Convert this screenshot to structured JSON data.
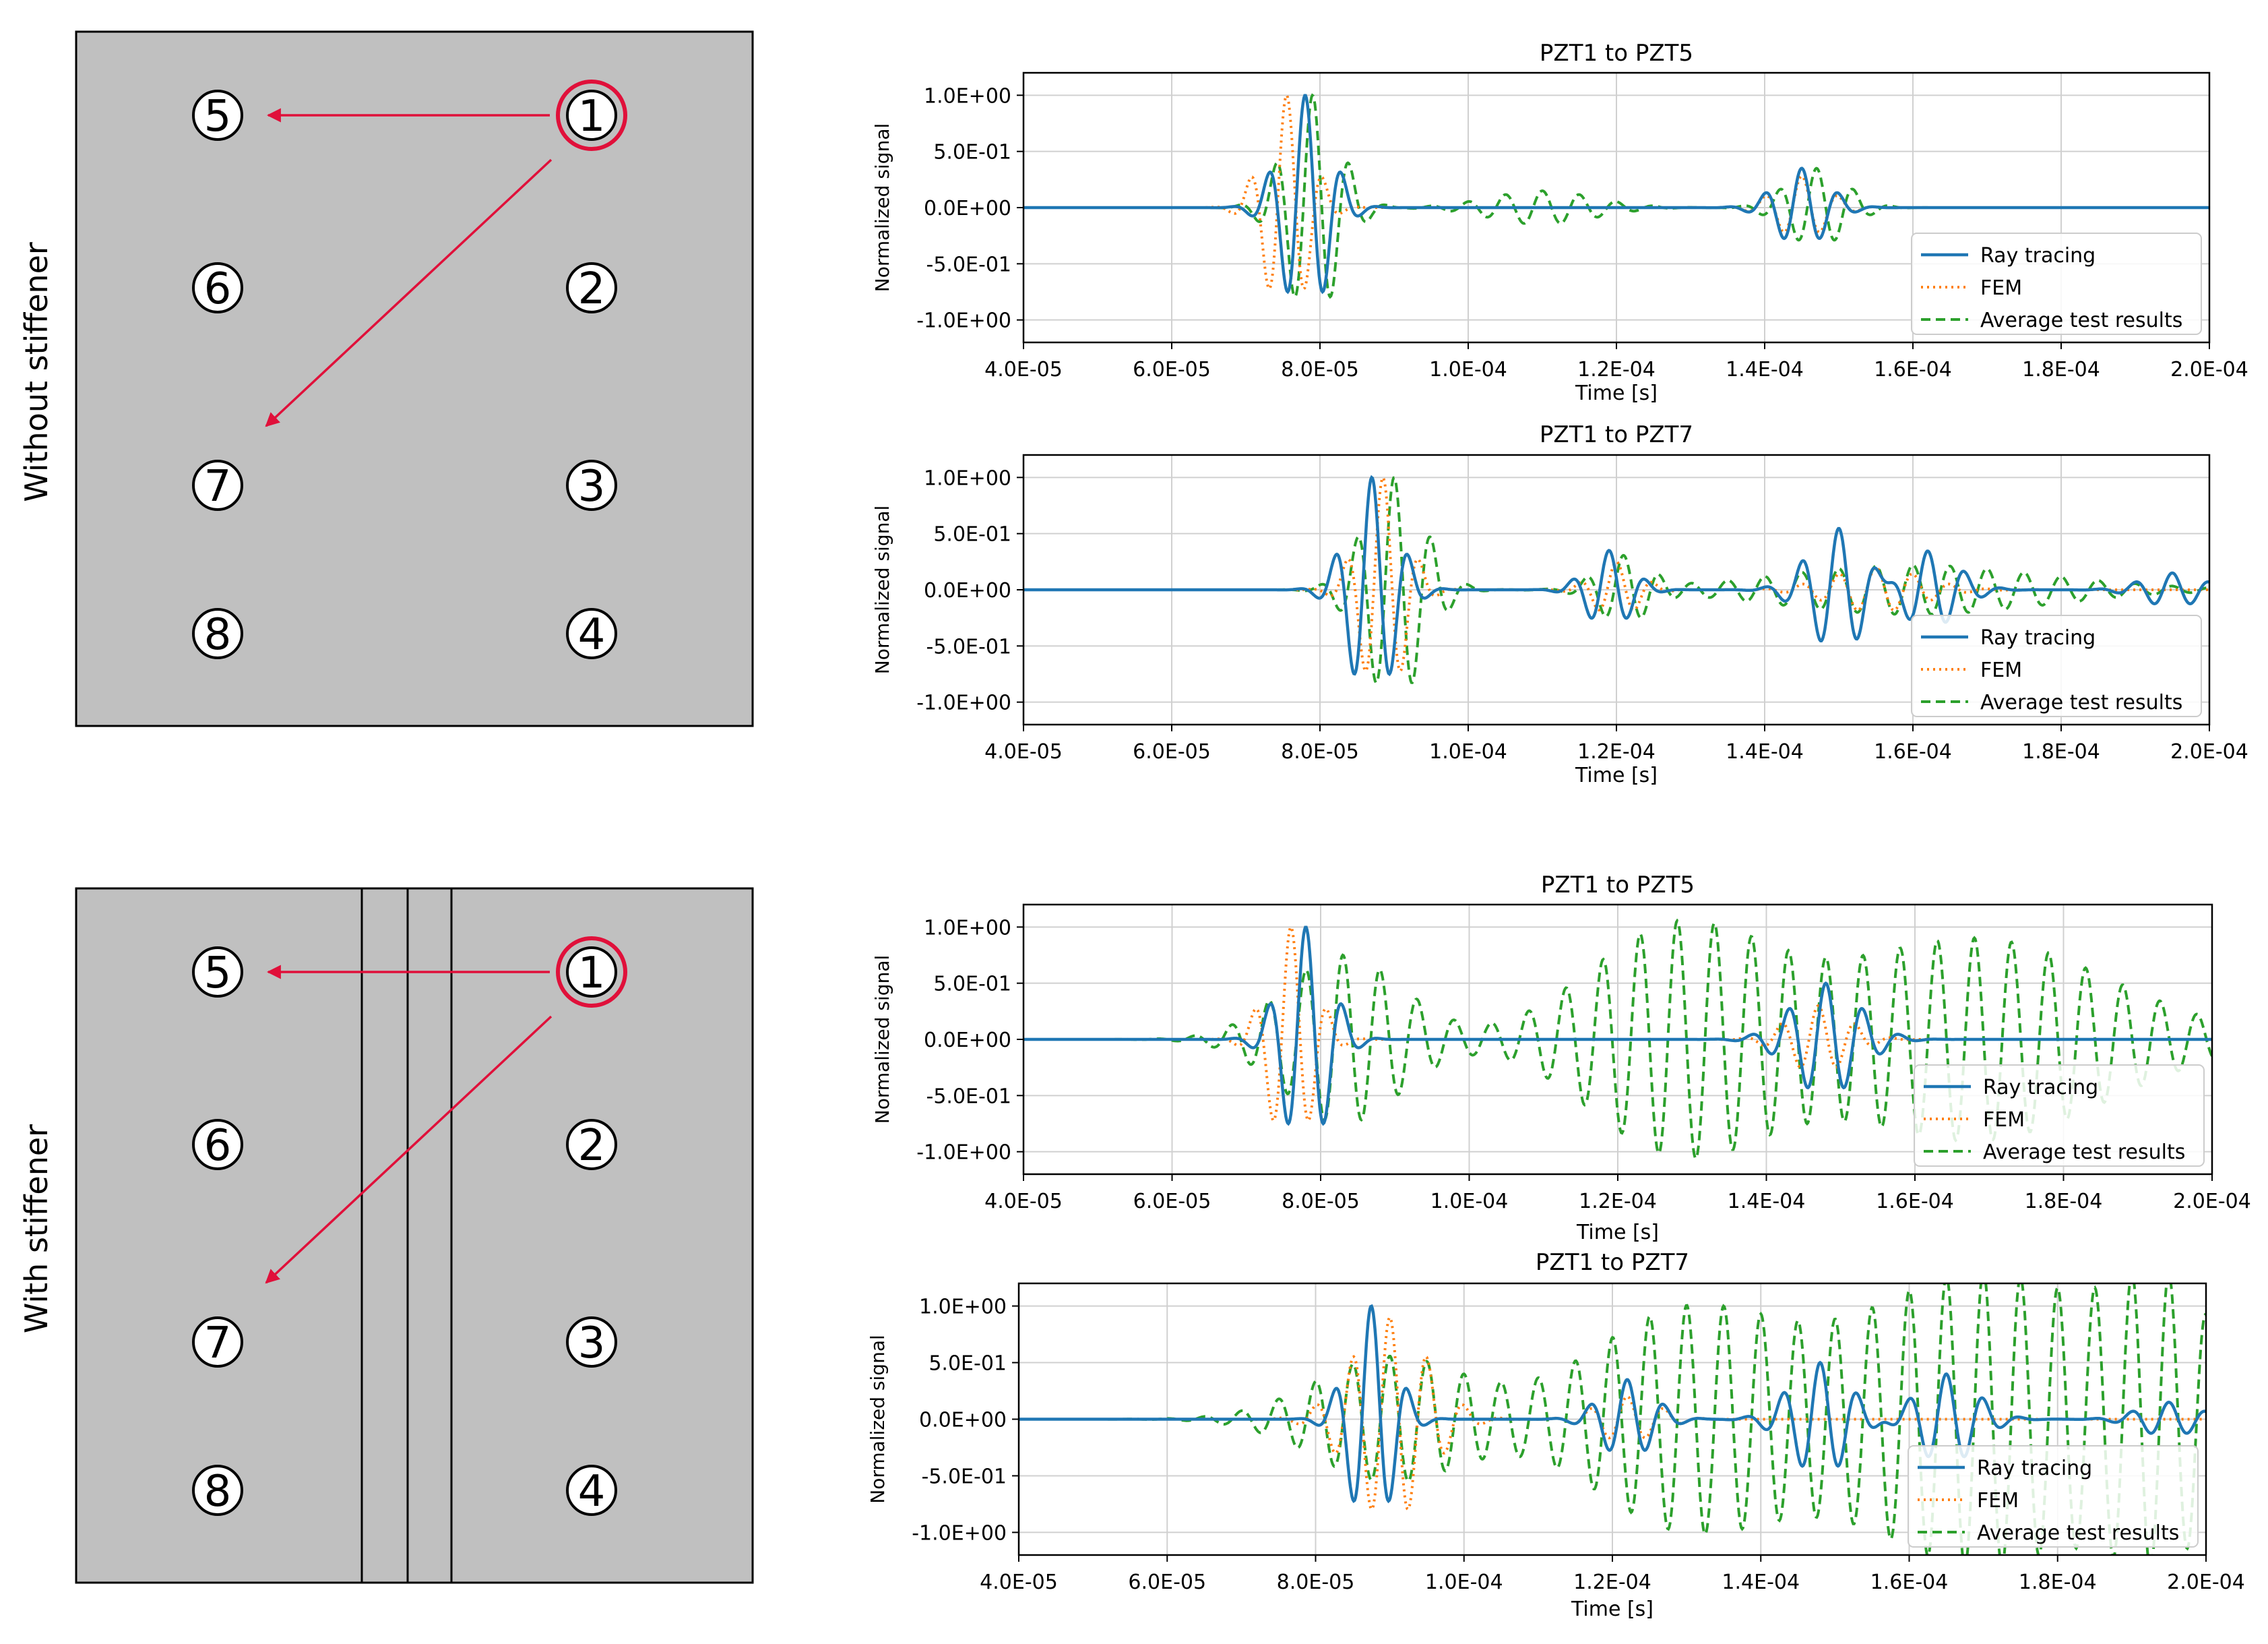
{
  "rows": [
    {
      "side_label": "Without stiffener",
      "has_stiffener": false,
      "sensors": [
        {
          "id": "1",
          "source": true
        },
        {
          "id": "2"
        },
        {
          "id": "3"
        },
        {
          "id": "4"
        },
        {
          "id": "5"
        },
        {
          "id": "6"
        },
        {
          "id": "7"
        },
        {
          "id": "8"
        }
      ]
    },
    {
      "side_label": "With stiffener",
      "has_stiffener": true,
      "sensors": [
        {
          "id": "1",
          "source": true
        },
        {
          "id": "2"
        },
        {
          "id": "3"
        },
        {
          "id": "4"
        },
        {
          "id": "5"
        },
        {
          "id": "6"
        },
        {
          "id": "7"
        },
        {
          "id": "8"
        }
      ]
    }
  ],
  "colors": {
    "plate": "#c0c0c0",
    "arrow": "#e0103a",
    "ray_tracing": "#1f77b4",
    "fem": "#ff7f0e",
    "test": "#2ca02c",
    "grid": "#d0d0d0"
  },
  "chart_data": [
    {
      "type": "line",
      "title": "PZT1 to PZT5",
      "xlabel": "Time [s]",
      "ylabel": "Normalized signal",
      "xlim": [
        4e-05,
        0.0002
      ],
      "ylim": [
        -1.2,
        1.2
      ],
      "xticks": [
        "4.0E-05",
        "6.0E-05",
        "8.0E-05",
        "1.0E-04",
        "1.2E-04",
        "1.4E-04",
        "1.6E-04",
        "1.8E-04",
        "2.0E-04"
      ],
      "yticks": [
        "1.0E+00",
        "5.0E-01",
        "0.0E+00",
        "-5.0E-01",
        "-1.0E+00"
      ],
      "grid": true,
      "legend": "bottom-right",
      "series": [
        {
          "name": "Ray tracing",
          "style": "solid",
          "packets": [
            [
              7.8e-05,
              1.0,
              3.2e-06,
              200000
            ],
            [
              0.000145,
              0.35,
              3.5e-06,
              200000
            ]
          ]
        },
        {
          "name": "FEM",
          "style": "dotted",
          "packets": [
            [
              7.55e-05,
              1.0,
              3e-06,
              200000
            ],
            [
              0.000145,
              0.28,
              3.5e-06,
              200000
            ]
          ]
        },
        {
          "name": "Average test results",
          "style": "dashed",
          "packets": [
            [
              7.9e-05,
              1.0,
              3.6e-06,
              200000
            ],
            [
              0.00011,
              0.15,
              7e-06,
              200000
            ],
            [
              0.000147,
              0.35,
              4e-06,
              200000
            ]
          ]
        }
      ]
    },
    {
      "type": "line",
      "title": "PZT1 to PZT7",
      "xlabel": "Time [s]",
      "ylabel": "Normalized signal",
      "xlim": [
        4e-05,
        0.0002
      ],
      "ylim": [
        -1.2,
        1.2
      ],
      "xticks": [
        "4.0E-05",
        "6.0E-05",
        "8.0E-05",
        "1.0E-04",
        "1.2E-04",
        "1.4E-04",
        "1.6E-04",
        "1.8E-04",
        "2.0E-04"
      ],
      "yticks": [
        "1.0E+00",
        "5.0E-01",
        "0.0E+00",
        "-5.0E-01",
        "-1.0E+00"
      ],
      "grid": true,
      "legend": "bottom-right",
      "series": [
        {
          "name": "Ray tracing",
          "style": "solid",
          "packets": [
            [
              8.7e-05,
              1.0,
              3.2e-06,
              200000
            ],
            [
              0.000119,
              0.35,
              3e-06,
              200000
            ],
            [
              0.00015,
              0.55,
              4e-06,
              200000
            ],
            [
              0.000162,
              0.35,
              4e-06,
              200000
            ],
            [
              0.000195,
              0.15,
              4e-06,
              200000
            ]
          ]
        },
        {
          "name": "FEM",
          "style": "dotted",
          "packets": [
            [
              8.85e-05,
              1.0,
              3e-06,
              200000
            ],
            [
              0.00012,
              0.25,
              3e-06,
              200000
            ],
            [
              0.000155,
              0.2,
              6e-06,
              200000
            ]
          ]
        },
        {
          "name": "Average test results",
          "style": "dashed",
          "packets": [
            [
              9e-05,
              1.0,
              4e-06,
              200000
            ],
            [
              0.000121,
              0.3,
              3.5e-06,
              200000
            ],
            [
              0.00016,
              0.22,
              1.8e-05,
              200000
            ]
          ]
        }
      ]
    },
    {
      "type": "line",
      "title": "PZT1 to PZT5",
      "xlabel": "Time [s]",
      "ylabel": "Normalized signal",
      "xlim": [
        4e-05,
        0.0002
      ],
      "ylim": [
        -1.2,
        1.2
      ],
      "xticks": [
        "4.0E-05",
        "6.0E-05",
        "8.0E-05",
        "1.0E-04",
        "1.2E-04",
        "1.4E-04",
        "1.6E-04",
        "1.8E-04",
        "2.0E-04"
      ],
      "yticks": [
        "1.0E+00",
        "5.0E-01",
        "0.0E+00",
        "-5.0E-01",
        "-1.0E+00"
      ],
      "grid": true,
      "legend": "bottom-right",
      "series": [
        {
          "name": "Ray tracing",
          "style": "solid",
          "packets": [
            [
              7.8e-05,
              1.0,
              3.2e-06,
              200000
            ],
            [
              0.000148,
              0.5,
              4.5e-06,
              200000
            ]
          ]
        },
        {
          "name": "FEM",
          "style": "dotted",
          "packets": [
            [
              7.6e-05,
              1.0,
              3e-06,
              200000
            ],
            [
              0.000147,
              0.3,
              4e-06,
              200000
            ]
          ]
        },
        {
          "name": "Average test results",
          "style": "dashed",
          "packets": [
            [
              8.3e-05,
              0.75,
              8e-06,
              200000
            ],
            [
              0.000128,
              0.98,
              1.2e-05,
              200000
            ],
            [
              0.000168,
              0.9,
              1.8e-05,
              200000
            ]
          ]
        }
      ]
    },
    {
      "type": "line",
      "title": "PZT1 to PZT7",
      "xlabel": "Time [s]",
      "ylabel": "Normalized signal",
      "xlim": [
        4e-05,
        0.0002
      ],
      "ylim": [
        -1.2,
        1.2
      ],
      "xticks": [
        "4.0E-05",
        "6.0E-05",
        "8.0E-05",
        "1.0E-04",
        "1.2E-04",
        "1.4E-04",
        "1.6E-04",
        "1.8E-04",
        "2.0E-04"
      ],
      "yticks": [
        "1.0E+00",
        "5.0E-01",
        "0.0E+00",
        "-5.0E-01",
        "-1.0E+00"
      ],
      "grid": true,
      "legend": "bottom-right",
      "series": [
        {
          "name": "Ray tracing",
          "style": "solid",
          "packets": [
            [
              8.75e-05,
              1.0,
              3e-06,
              200000
            ],
            [
              0.000122,
              0.35,
              3.5e-06,
              200000
            ],
            [
              0.000148,
              0.5,
              4e-06,
              200000
            ],
            [
              0.000165,
              0.4,
              4e-06,
              200000
            ],
            [
              0.000195,
              0.15,
              4e-06,
              200000
            ]
          ]
        },
        {
          "name": "FEM",
          "style": "dotted",
          "packets": [
            [
              9e-05,
              0.9,
              5e-06,
              200000
            ],
            [
              0.000122,
              0.2,
              4e-06,
              200000
            ]
          ]
        },
        {
          "name": "Average test results",
          "style": "dashed",
          "packets": [
            [
              9e-05,
              0.55,
              1e-05,
              200000
            ],
            [
              0.00013,
              0.95,
              1.3e-05,
              200000
            ],
            [
              0.00017,
              1.3,
              1.6e-05,
              200000
            ],
            [
              0.000195,
              0.9,
              7e-06,
              200000
            ]
          ]
        }
      ]
    }
  ]
}
